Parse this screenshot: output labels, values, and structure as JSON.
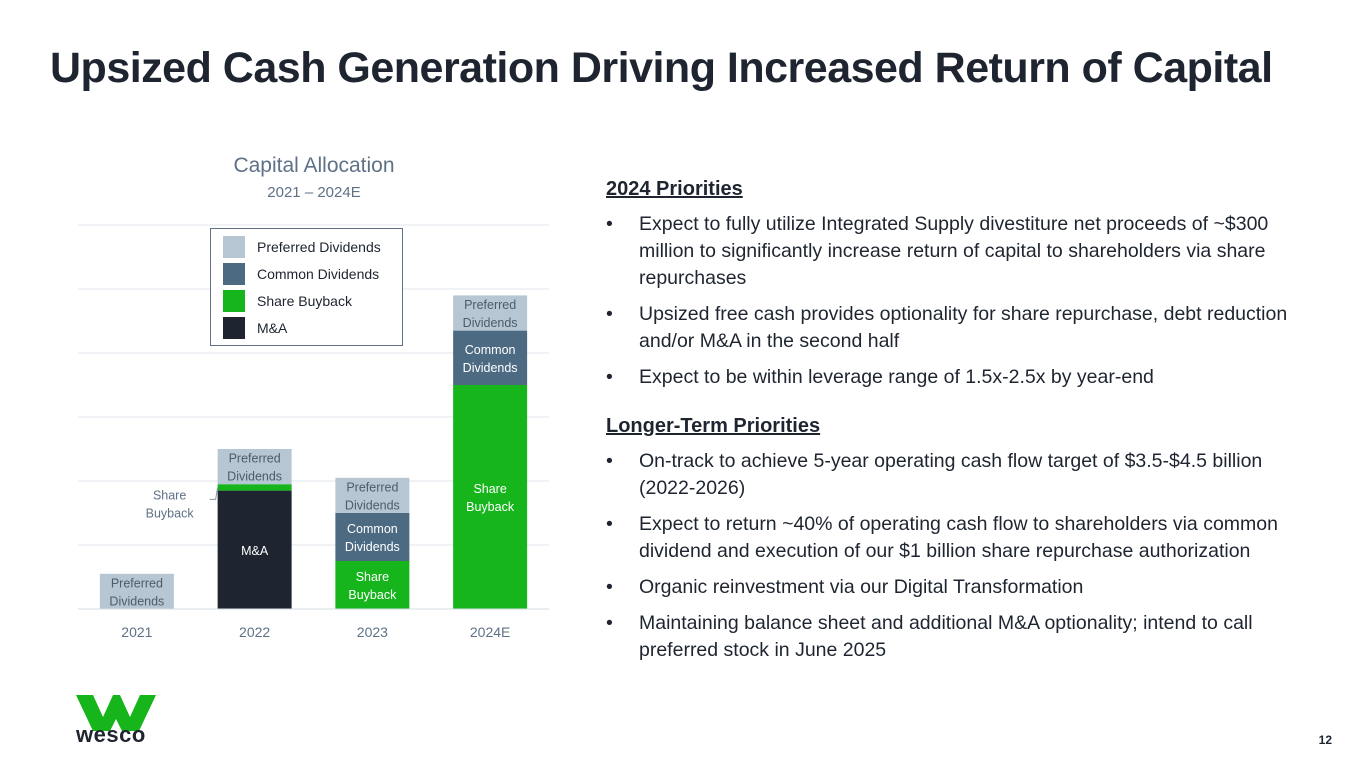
{
  "slide": {
    "title": "Upsized Cash Generation Driving Increased Return of Capital",
    "page_number": "12"
  },
  "chart_data": {
    "type": "bar",
    "stacked": true,
    "title": "Capital Allocation",
    "subtitle": "2021 – 2024E",
    "categories": [
      "2021",
      "2022",
      "2023",
      "2024E"
    ],
    "ylim": [
      0,
      6
    ],
    "grid": true,
    "legend_position": "top-left",
    "series": [
      {
        "name": "M&A",
        "color": "#1e2530",
        "values": [
          0,
          1.85,
          0,
          0
        ],
        "labels": [
          "",
          "M&A",
          "",
          ""
        ]
      },
      {
        "name": "Share Buyback",
        "color": "#16b51c",
        "values": [
          0,
          0.1,
          0.75,
          3.5
        ],
        "labels": [
          "",
          "",
          "Share\nBuyback",
          "Share\nBuyback"
        ]
      },
      {
        "name": "Common Dividends",
        "color": "#4d6a83",
        "values": [
          0,
          0,
          0.75,
          0.85
        ],
        "labels": [
          "",
          "",
          "Common\nDividends",
          "Common\nDividends"
        ]
      },
      {
        "name": "Preferred Dividends",
        "color": "#b6c6d2",
        "values": [
          0.55,
          0.55,
          0.55,
          0.55
        ],
        "labels": [
          "Preferred\nDividends",
          "Preferred\nDividends",
          "Preferred\nDividends",
          "Preferred\nDividends"
        ]
      }
    ],
    "annotations": [
      {
        "text": "Share\nBuyback",
        "category": "2022",
        "series": "Share Buyback",
        "callout": true
      }
    ]
  },
  "legend": {
    "items": [
      {
        "label": "Preferred Dividends",
        "color": "#b6c6d2"
      },
      {
        "label": "Common Dividends",
        "color": "#4d6a83"
      },
      {
        "label": "Share Buyback",
        "color": "#16b51c"
      },
      {
        "label": "M&A",
        "color": "#1e2530"
      }
    ]
  },
  "priorities_2024": {
    "heading": "2024 Priorities",
    "bullets": [
      "Expect to fully utilize Integrated Supply divestiture net proceeds of ~$300 million to significantly increase return of capital to shareholders via share repurchases",
      "Upsized free cash provides optionality for share repurchase, debt reduction and/or M&A in the second half",
      "Expect to be within leverage range of 1.5x-2.5x by year-end"
    ]
  },
  "priorities_long": {
    "heading": "Longer-Term Priorities",
    "bullets": [
      "On-track to achieve 5-year operating cash flow target of $3.5-$4.5 billion (2022-2026)",
      "Expect to return ~40% of operating cash flow to shareholders via common dividend and execution of our $1 billion share repurchase authorization",
      "Organic reinvestment via our Digital Transformation",
      "Maintaining balance sheet and additional M&A optionality; intend to call preferred stock in June 2025"
    ]
  },
  "bullet_glyph": "•",
  "logo": {
    "text": "wesco",
    "color": "#16b51c"
  }
}
